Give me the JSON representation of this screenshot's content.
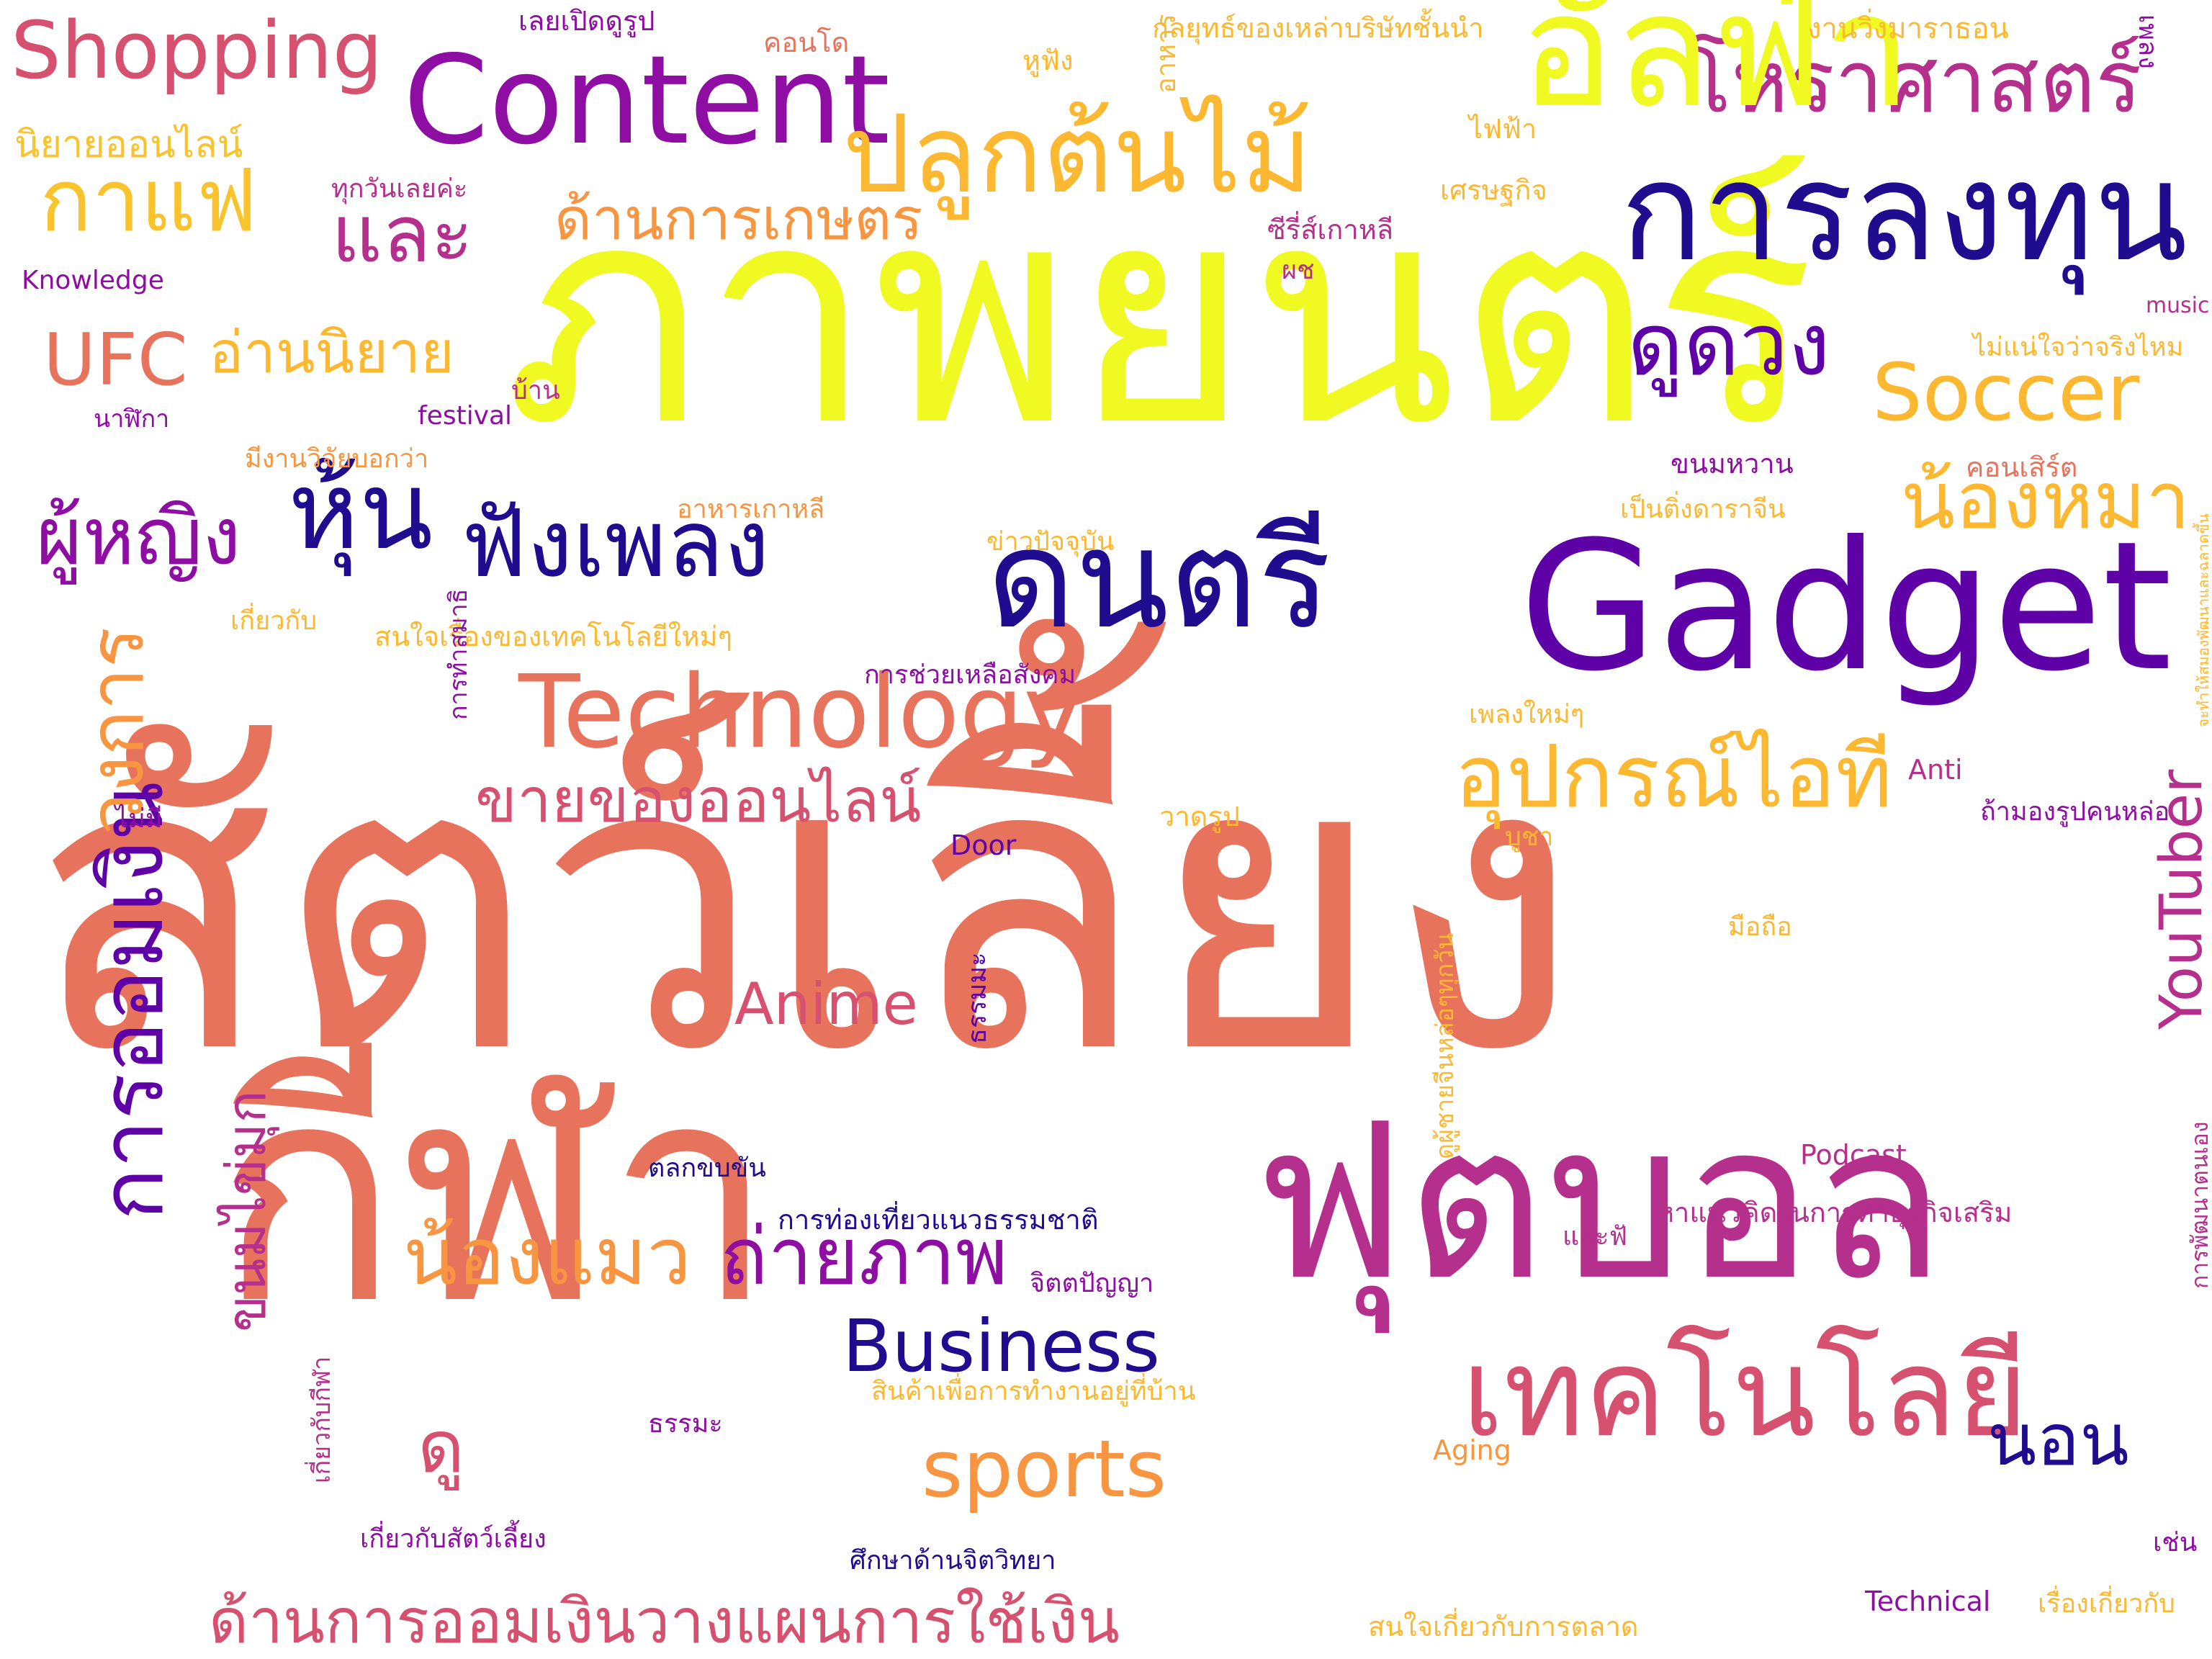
{
  "palette": {
    "background": "#ffffff",
    "deep_blue": "#1f0c8f",
    "indigo": "#5e01a6",
    "purple": "#8e0ea3",
    "magenta": "#b52f8c",
    "pink": "#d6516f",
    "coral": "#e8735d",
    "orange": "#f89540",
    "amber": "#fbb830",
    "yellow": "#f0f921"
  },
  "words": [
    {
      "id": "pets",
      "text": "สัตว์เลี้ยง",
      "color": "#e8735d"
    },
    {
      "id": "movies",
      "text": "ภาพยนตร์",
      "color": "#f0f921"
    },
    {
      "id": "music",
      "text": "ดนตรี",
      "color": "#1f0c8f"
    },
    {
      "id": "sports-th",
      "text": "กีฬา",
      "color": "#e8735d"
    },
    {
      "id": "football",
      "text": "ฟุตบอล",
      "color": "#b52f8c"
    },
    {
      "id": "gadget",
      "text": "Gadget",
      "color": "#5e01a6"
    },
    {
      "id": "content",
      "text": "Content",
      "color": "#8e0ea3"
    },
    {
      "id": "investing",
      "text": "การลงทุน",
      "color": "#1f0c8f"
    },
    {
      "id": "technology-th",
      "text": "เทคโนโลยี",
      "color": "#d6516f"
    },
    {
      "id": "technology",
      "text": "Technology",
      "color": "#e8735d"
    },
    {
      "id": "shopping",
      "text": "Shopping",
      "color": "#d6516f"
    },
    {
      "id": "planting",
      "text": "ปลูกต้นไม้",
      "color": "#fbb830"
    },
    {
      "id": "astrology",
      "text": "โหราศาสตร์",
      "color": "#b52f8c"
    },
    {
      "id": "coffee",
      "text": "กาแฟ",
      "color": "#f8c32c"
    },
    {
      "id": "and",
      "text": "และ",
      "color": "#b52f8c"
    },
    {
      "id": "agriculture",
      "text": "ด้านการเกษตร",
      "color": "#f89540"
    },
    {
      "id": "fortune",
      "text": "ดูดวง",
      "color": "#5e01a6"
    },
    {
      "id": "soccer",
      "text": "Soccer",
      "color": "#fbb830"
    },
    {
      "id": "ufc",
      "text": "UFC",
      "color": "#e8735d"
    },
    {
      "id": "reading",
      "text": "อ่านนิยาย",
      "color": "#fbb830"
    },
    {
      "id": "stocks",
      "text": "หุ้น",
      "color": "#1f0c8f"
    },
    {
      "id": "listen-music",
      "text": "ฟังเพลง",
      "color": "#1f0c8f"
    },
    {
      "id": "women",
      "text": "ผู้หญิง",
      "color": "#8e0ea3"
    },
    {
      "id": "dog",
      "text": "น้องหมา",
      "color": "#fbb830"
    },
    {
      "id": "it-device",
      "text": "อุปกรณ์ไอที",
      "color": "#fbb830"
    },
    {
      "id": "sell-online",
      "text": "ขายของออนไลน์",
      "color": "#d6516f"
    },
    {
      "id": "cat",
      "text": "น้องแมว",
      "color": "#f89540"
    },
    {
      "id": "photography",
      "text": "ถ่ายภาพ",
      "color": "#8e0ea3"
    },
    {
      "id": "business",
      "text": "Business",
      "color": "#1f0c8f"
    },
    {
      "id": "sports",
      "text": "sports",
      "color": "#f89540"
    },
    {
      "id": "anime",
      "text": "Anime",
      "color": "#d6516f"
    },
    {
      "id": "sleep",
      "text": "นอน",
      "color": "#1f0c8f"
    },
    {
      "id": "watch",
      "text": "ดู",
      "color": "#d6516f"
    },
    {
      "id": "saving-plan",
      "text": "ด้านการออมเงินวางแผนการใช้เงิน",
      "color": "#d6516f"
    },
    {
      "id": "saving",
      "text": "การออมเงิน",
      "color": "#5e01a6"
    },
    {
      "id": "dessert",
      "text": "ขนมไข่มุก",
      "color": "#b52f8c"
    },
    {
      "id": "circle",
      "text": "วงการ",
      "color": "#f89540"
    },
    {
      "id": "youtuber",
      "text": "YouTuber",
      "color": "#b52f8c"
    },
    {
      "id": "online-novel",
      "text": "นิยายออนไลน์",
      "color": "#f8c32c"
    },
    {
      "id": "alpha",
      "text": "อัลฟ่า",
      "color": "#f0f921"
    },
    {
      "id": "open-pic",
      "text": "เลยเปิดดูรูป",
      "color": "#8e0ea3"
    },
    {
      "id": "condo",
      "text": "คอนโด",
      "color": "#e8735d"
    },
    {
      "id": "strategy",
      "text": "กลยุทธ์ของเหล่าบริษัทชั้นนำ",
      "color": "#fbb830"
    },
    {
      "id": "marathon",
      "text": "งานวิ่งมาราธอน",
      "color": "#fbb830"
    },
    {
      "id": "headphone",
      "text": "หูฟัง",
      "color": "#fbb830"
    },
    {
      "id": "food",
      "text": "อาหาร",
      "color": "#fbb830"
    },
    {
      "id": "electric",
      "text": "ไฟฟ้า",
      "color": "#fbb830"
    },
    {
      "id": "song",
      "text": "เพลง",
      "color": "#8e0ea3"
    },
    {
      "id": "everyday",
      "text": "ทุกวันเลยค่ะ",
      "color": "#b52f8c"
    },
    {
      "id": "economics",
      "text": "เศรษฐกิจ",
      "color": "#fbb830"
    },
    {
      "id": "korean-series",
      "text": "ซีรี่ส์เกาหลี",
      "color": "#b52f8c"
    },
    {
      "id": "knowledge",
      "text": "Knowledge",
      "color": "#8e0ea3"
    },
    {
      "id": "grow",
      "text": "ผช",
      "color": "#b52f8c"
    },
    {
      "id": "music-en",
      "text": "music",
      "color": "#b52f8c"
    },
    {
      "id": "not-sure",
      "text": "ไม่แน่ใจว่าจริงไหม",
      "color": "#fbb830"
    },
    {
      "id": "house",
      "text": "บ้าน",
      "color": "#b52f8c"
    },
    {
      "id": "watch-en",
      "text": "นาฬิกา",
      "color": "#8e0ea3"
    },
    {
      "id": "festival",
      "text": "festival",
      "color": "#8e0ea3"
    },
    {
      "id": "research",
      "text": "มีงานวิจัยบอกว่า",
      "color": "#f89540"
    },
    {
      "id": "candy",
      "text": "ขนมหวาน",
      "color": "#8e0ea3"
    },
    {
      "id": "concert",
      "text": "คอนเสิร์ต",
      "color": "#e8735d"
    },
    {
      "id": "korean-food",
      "text": "อาหารเกาหลี",
      "color": "#f89540"
    },
    {
      "id": "chinese-star",
      "text": "เป็นติ่งดาราจีน",
      "color": "#fbb830"
    },
    {
      "id": "news",
      "text": "ข่าวปัจจุบัน",
      "color": "#fbb830"
    },
    {
      "id": "about",
      "text": "เกี่ยวกับ",
      "color": "#fbb830"
    },
    {
      "id": "new-tech",
      "text": "สนใจเรื่องของเทคโนโลยีใหม่ๆ",
      "color": "#fbb830"
    },
    {
      "id": "social-help",
      "text": "การช่วยเหลือสังคม",
      "color": "#8e0ea3"
    },
    {
      "id": "meditation",
      "text": "การทำสมาธิ",
      "color": "#8e0ea3"
    },
    {
      "id": "new-song",
      "text": "เพลงใหม่ๆ",
      "color": "#fbb830"
    },
    {
      "id": "anti",
      "text": "Anti",
      "color": "#b52f8c"
    },
    {
      "id": "dont-have",
      "text": "ไม่มี",
      "color": "#8e0ea3"
    },
    {
      "id": "drawing",
      "text": "วาดรูป",
      "color": "#fbb830"
    },
    {
      "id": "door",
      "text": "Door",
      "color": "#5e01a6"
    },
    {
      "id": "worship",
      "text": "บูชา",
      "color": "#fbb830"
    },
    {
      "id": "handsome",
      "text": "ถ้ามองรูปคนหล่อ",
      "color": "#8e0ea3"
    },
    {
      "id": "market-dev",
      "text": "จะทำให้สมองพัฒนาและฉลาดขึ้น",
      "color": "#fbb830"
    },
    {
      "id": "mobile",
      "text": "มือถือ",
      "color": "#fbb830"
    },
    {
      "id": "dharma",
      "text": "ธรรมมะ",
      "color": "#5e01a6"
    },
    {
      "id": "eat-everyday",
      "text": "ดูผู้ชายจีนหล่อๆทุกวัน",
      "color": "#fbb830"
    },
    {
      "id": "podcast",
      "text": "Podcast",
      "color": "#b52f8c"
    },
    {
      "id": "funny",
      "text": "ตลกขบขัน",
      "color": "#1f0c8f"
    },
    {
      "id": "business-idea",
      "text": "หาแนวคิดในการทำธุรกิจเสริม",
      "color": "#b52f8c"
    },
    {
      "id": "and-fun",
      "text": "และฟั",
      "color": "#b52f8c"
    },
    {
      "id": "nature-travel",
      "text": "การท่องเที่ยวแนวธรรมชาติ",
      "color": "#1f0c8f"
    },
    {
      "id": "psychology",
      "text": "จิตตปัญญา",
      "color": "#8e0ea3"
    },
    {
      "id": "self-dev",
      "text": "การพัฒนาตนเอง",
      "color": "#b52f8c"
    },
    {
      "id": "wfh",
      "text": "สินค้าเพื่อการทำงานอยู่ที่บ้าน",
      "color": "#fbb830"
    },
    {
      "id": "dhamma",
      "text": "ธรรมะ",
      "color": "#8e0ea3"
    },
    {
      "id": "aging",
      "text": "Aging",
      "color": "#f89540"
    },
    {
      "id": "about-sport",
      "text": "เกี่ยวกับกีฬา",
      "color": "#b52f8c"
    },
    {
      "id": "about-pets",
      "text": "เกี่ยวกับสัตว์เลี้ยง",
      "color": "#8e0ea3"
    },
    {
      "id": "psych-study",
      "text": "ศึกษาด้านจิตวิทยา",
      "color": "#1f0c8f"
    },
    {
      "id": "such-as",
      "text": "เช่น",
      "color": "#8e0ea3"
    },
    {
      "id": "technical",
      "text": "Technical",
      "color": "#8e0ea3"
    },
    {
      "id": "about-topic",
      "text": "เรื่องเกี่ยวกับ",
      "color": "#fbb830"
    },
    {
      "id": "marketing",
      "text": "สนใจเกี่ยวกับการตลาด",
      "color": "#fbb830"
    }
  ]
}
